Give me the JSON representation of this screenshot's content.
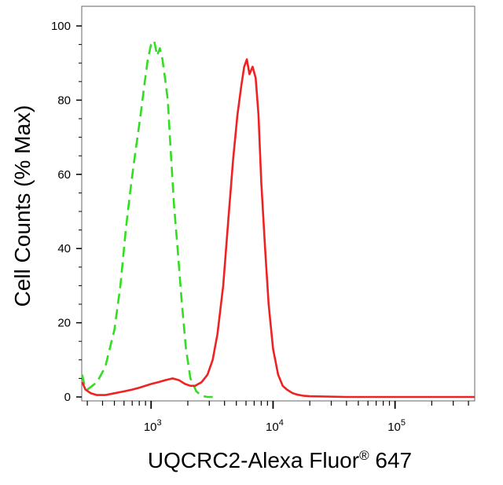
{
  "chart_data": {
    "type": "line",
    "title": "",
    "xlabel": "UQCRC2-Alexa Fluor",
    "xlabel_superscript": "®",
    "xlabel_suffix": " 647",
    "ylabel": "Cell Counts (% Max)",
    "x_scale": "log",
    "xlim": [
      270,
      450000
    ],
    "ylim": [
      -2,
      102
    ],
    "grid": false,
    "legend": "none",
    "y_ticks": [
      {
        "value": 0,
        "label": "0"
      },
      {
        "value": 20,
        "label": "20"
      },
      {
        "value": 40,
        "label": "40"
      },
      {
        "value": 60,
        "label": "60"
      },
      {
        "value": 80,
        "label": "80"
      },
      {
        "value": 100,
        "label": "100"
      }
    ],
    "x_ticks": [
      {
        "value": 1000,
        "base": "10",
        "exp": "3"
      },
      {
        "value": 10000,
        "base": "10",
        "exp": "4"
      },
      {
        "value": 100000,
        "base": "10",
        "exp": "5"
      }
    ],
    "series": [
      {
        "color": "#33dd22",
        "style": "dashed",
        "x": [
          272,
          285,
          300,
          330,
          360,
          420,
          500,
          560,
          620,
          690,
          750,
          820,
          880,
          940,
          1000,
          1060,
          1120,
          1180,
          1240,
          1300,
          1370,
          1450,
          1540,
          1650,
          1780,
          1930,
          2100,
          2350,
          2600,
          2900,
          3200
        ],
        "y": [
          6,
          3,
          2,
          3,
          4,
          8,
          18,
          30,
          45,
          58,
          67,
          76,
          84,
          91,
          95,
          96,
          92,
          94,
          91,
          86,
          80,
          66,
          52,
          40,
          26,
          13,
          5,
          1.5,
          0.3,
          0,
          0
        ]
      },
      {
        "color": "#ee2222",
        "style": "solid",
        "x": [
          272,
          290,
          320,
          360,
          420,
          500,
          600,
          700,
          800,
          900,
          1000,
          1150,
          1300,
          1500,
          1700,
          1900,
          2100,
          2300,
          2600,
          2900,
          3200,
          3500,
          3900,
          4300,
          4700,
          5100,
          5500,
          5800,
          6100,
          6400,
          6800,
          7200,
          7600,
          8000,
          8600,
          9200,
          10000,
          11000,
          12000,
          13000,
          14500,
          16000,
          18000,
          20000,
          40000,
          100000,
          200000,
          450000
        ],
        "y": [
          4,
          2,
          1,
          0.5,
          0.5,
          1,
          1.5,
          2,
          2.5,
          3,
          3.5,
          4,
          4.5,
          5,
          4.5,
          3.5,
          3,
          3,
          4,
          6,
          10,
          17,
          30,
          48,
          64,
          76,
          84,
          89,
          91,
          87,
          89,
          86,
          76,
          58,
          40,
          25,
          13,
          6,
          3,
          2,
          1,
          0.6,
          0.3,
          0.2,
          0,
          0,
          0,
          0
        ]
      }
    ]
  }
}
